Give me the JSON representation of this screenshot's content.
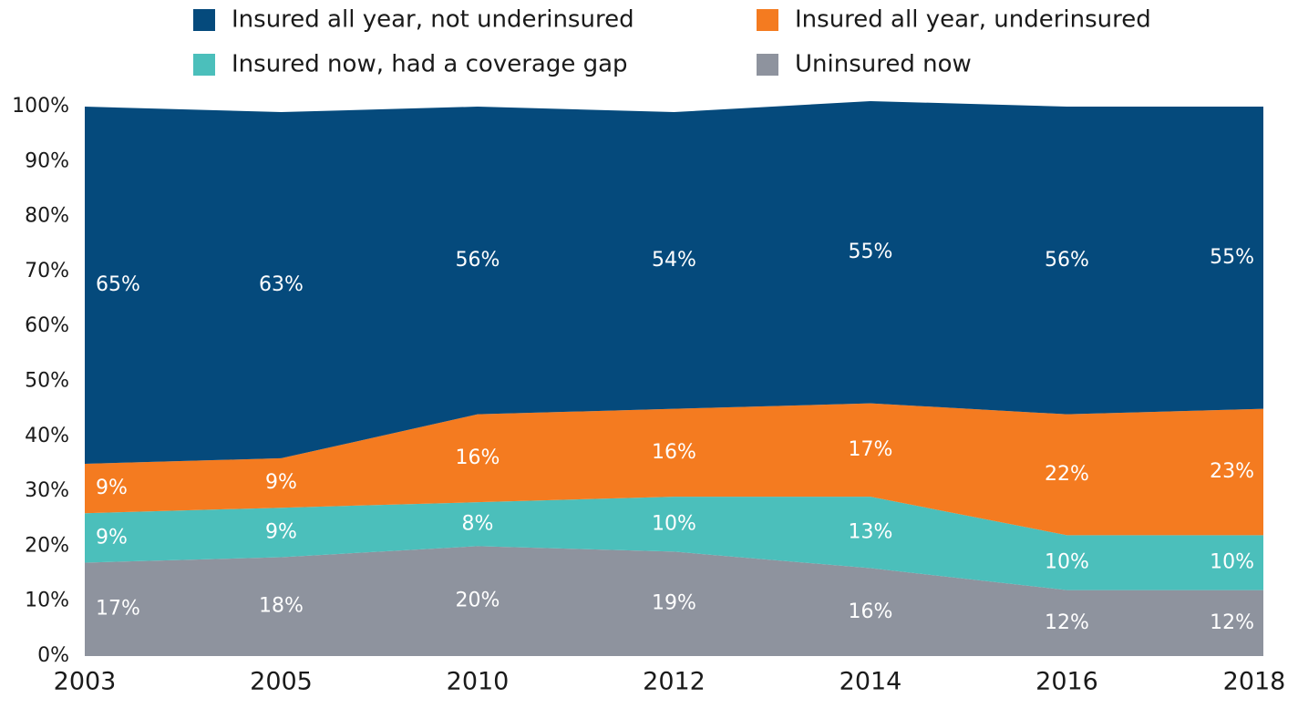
{
  "chart_data": {
    "type": "stacked_area",
    "categories": [
      "2003",
      "2005",
      "2010",
      "2012",
      "2014",
      "2016",
      "2018"
    ],
    "series": [
      {
        "name": "Insured all year, not underinsured",
        "color": "#054a7c",
        "values": [
          65,
          63,
          56,
          54,
          55,
          56,
          55
        ],
        "value_labels": [
          "65%",
          "63%",
          "56%",
          "54%",
          "55%",
          "56%",
          "55%"
        ]
      },
      {
        "name": "Insured all year, underinsured",
        "color": "#f47b20",
        "values": [
          9,
          9,
          16,
          16,
          17,
          22,
          23
        ],
        "value_labels": [
          "9%",
          "9%",
          "16%",
          "16%",
          "17%",
          "22%",
          "23%"
        ]
      },
      {
        "name": "Insured now, had a coverage gap",
        "color": "#4bbfbb",
        "values": [
          9,
          9,
          8,
          10,
          13,
          10,
          10
        ],
        "value_labels": [
          "9%",
          "9%",
          "8%",
          "10%",
          "13%",
          "10%",
          "10%"
        ]
      },
      {
        "name": "Uninsured now",
        "color": "#8e939e",
        "values": [
          17,
          18,
          20,
          19,
          16,
          12,
          12
        ],
        "value_labels": [
          "17%",
          "18%",
          "20%",
          "19%",
          "16%",
          "12%",
          "12%"
        ]
      }
    ],
    "ylim": [
      0,
      100
    ],
    "yticks": [
      {
        "value": 0,
        "label": "0%"
      },
      {
        "value": 10,
        "label": "10%"
      },
      {
        "value": 20,
        "label": "20%"
      },
      {
        "value": 30,
        "label": "30%"
      },
      {
        "value": 40,
        "label": "40%"
      },
      {
        "value": 50,
        "label": "50%"
      },
      {
        "value": 60,
        "label": "60%"
      },
      {
        "value": 70,
        "label": "70%"
      },
      {
        "value": 80,
        "label": "80%"
      },
      {
        "value": 90,
        "label": "90%"
      },
      {
        "value": 100,
        "label": "100%"
      }
    ],
    "legend": "top"
  }
}
